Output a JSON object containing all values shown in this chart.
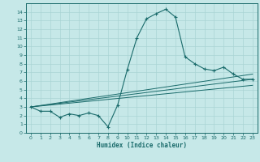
{
  "xlabel": "Humidex (Indice chaleur)",
  "bg_color": "#c6e8e8",
  "line_color": "#1a6b6b",
  "grid_color": "#aad4d4",
  "x_ticks": [
    0,
    1,
    2,
    3,
    4,
    5,
    6,
    7,
    8,
    9,
    10,
    11,
    12,
    13,
    14,
    15,
    16,
    17,
    18,
    19,
    20,
    21,
    22,
    23
  ],
  "y_ticks": [
    0,
    1,
    2,
    3,
    4,
    5,
    6,
    7,
    8,
    9,
    10,
    11,
    12,
    13,
    14
  ],
  "ylim": [
    0,
    15
  ],
  "xlim": [
    -0.5,
    23.5
  ],
  "curve1_x": [
    0,
    1,
    2,
    3,
    4,
    5,
    6,
    7,
    8,
    9,
    10,
    11,
    12,
    13,
    14,
    15,
    16,
    17,
    18,
    19,
    20,
    21,
    22,
    23
  ],
  "curve1_y": [
    3.0,
    2.5,
    2.5,
    1.8,
    2.2,
    2.0,
    2.3,
    2.0,
    0.7,
    3.2,
    7.3,
    11.0,
    13.2,
    13.8,
    14.3,
    13.4,
    8.8,
    8.0,
    7.4,
    7.2,
    7.6,
    6.8,
    6.2,
    6.2
  ],
  "line1_x": [
    0,
    23
  ],
  "line1_y": [
    3.0,
    6.8
  ],
  "line2_x": [
    0,
    23
  ],
  "line2_y": [
    3.0,
    6.2
  ],
  "line3_x": [
    0,
    23
  ],
  "line3_y": [
    3.0,
    5.5
  ]
}
